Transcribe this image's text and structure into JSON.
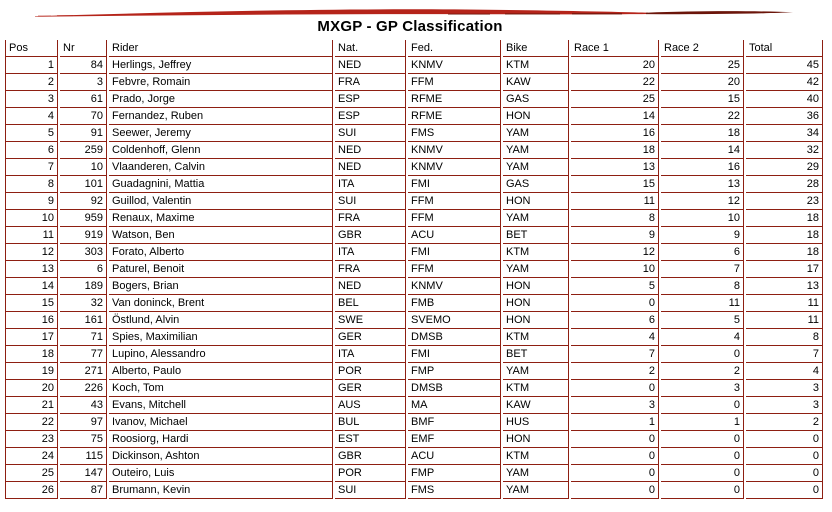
{
  "title": "MXGP - GP Classification",
  "colors": {
    "cell_border": "#8e1f12",
    "brush_bright_red": "#b5241a",
    "brush_dark_red": "#6b150a",
    "text": "#000000"
  },
  "table": {
    "columns": [
      {
        "key": "pos",
        "label": "Pos",
        "align": "right"
      },
      {
        "key": "nr",
        "label": "Nr",
        "align": "right"
      },
      {
        "key": "rider",
        "label": "Rider",
        "align": "left"
      },
      {
        "key": "nat",
        "label": "Nat.",
        "align": "left"
      },
      {
        "key": "fed",
        "label": "Fed.",
        "align": "left"
      },
      {
        "key": "bike",
        "label": "Bike",
        "align": "left"
      },
      {
        "key": "race1",
        "label": "Race 1",
        "align": "right"
      },
      {
        "key": "race2",
        "label": "Race 2",
        "align": "right"
      },
      {
        "key": "total",
        "label": "Total",
        "align": "right"
      }
    ],
    "rows": [
      {
        "pos": 1,
        "nr": 84,
        "rider": "Herlings, Jeffrey",
        "nat": "NED",
        "fed": "KNMV",
        "bike": "KTM",
        "race1": 20,
        "race2": 25,
        "total": 45
      },
      {
        "pos": 2,
        "nr": 3,
        "rider": "Febvre, Romain",
        "nat": "FRA",
        "fed": "FFM",
        "bike": "KAW",
        "race1": 22,
        "race2": 20,
        "total": 42
      },
      {
        "pos": 3,
        "nr": 61,
        "rider": "Prado, Jorge",
        "nat": "ESP",
        "fed": "RFME",
        "bike": "GAS",
        "race1": 25,
        "race2": 15,
        "total": 40
      },
      {
        "pos": 4,
        "nr": 70,
        "rider": "Fernandez, Ruben",
        "nat": "ESP",
        "fed": "RFME",
        "bike": "HON",
        "race1": 14,
        "race2": 22,
        "total": 36
      },
      {
        "pos": 5,
        "nr": 91,
        "rider": "Seewer, Jeremy",
        "nat": "SUI",
        "fed": "FMS",
        "bike": "YAM",
        "race1": 16,
        "race2": 18,
        "total": 34
      },
      {
        "pos": 6,
        "nr": 259,
        "rider": "Coldenhoff, Glenn",
        "nat": "NED",
        "fed": "KNMV",
        "bike": "YAM",
        "race1": 18,
        "race2": 14,
        "total": 32
      },
      {
        "pos": 7,
        "nr": 10,
        "rider": "Vlaanderen, Calvin",
        "nat": "NED",
        "fed": "KNMV",
        "bike": "YAM",
        "race1": 13,
        "race2": 16,
        "total": 29
      },
      {
        "pos": 8,
        "nr": 101,
        "rider": "Guadagnini, Mattia",
        "nat": "ITA",
        "fed": "FMI",
        "bike": "GAS",
        "race1": 15,
        "race2": 13,
        "total": 28
      },
      {
        "pos": 9,
        "nr": 92,
        "rider": "Guillod, Valentin",
        "nat": "SUI",
        "fed": "FFM",
        "bike": "HON",
        "race1": 11,
        "race2": 12,
        "total": 23
      },
      {
        "pos": 10,
        "nr": 959,
        "rider": "Renaux, Maxime",
        "nat": "FRA",
        "fed": "FFM",
        "bike": "YAM",
        "race1": 8,
        "race2": 10,
        "total": 18
      },
      {
        "pos": 11,
        "nr": 919,
        "rider": "Watson, Ben",
        "nat": "GBR",
        "fed": "ACU",
        "bike": "BET",
        "race1": 9,
        "race2": 9,
        "total": 18
      },
      {
        "pos": 12,
        "nr": 303,
        "rider": "Forato, Alberto",
        "nat": "ITA",
        "fed": "FMI",
        "bike": "KTM",
        "race1": 12,
        "race2": 6,
        "total": 18
      },
      {
        "pos": 13,
        "nr": 6,
        "rider": "Paturel, Benoit",
        "nat": "FRA",
        "fed": "FFM",
        "bike": "YAM",
        "race1": 10,
        "race2": 7,
        "total": 17
      },
      {
        "pos": 14,
        "nr": 189,
        "rider": "Bogers, Brian",
        "nat": "NED",
        "fed": "KNMV",
        "bike": "HON",
        "race1": 5,
        "race2": 8,
        "total": 13
      },
      {
        "pos": 15,
        "nr": 32,
        "rider": "Van doninck, Brent",
        "nat": "BEL",
        "fed": "FMB",
        "bike": "HON",
        "race1": 0,
        "race2": 11,
        "total": 11
      },
      {
        "pos": 16,
        "nr": 161,
        "rider": "Östlund, Alvin",
        "nat": "SWE",
        "fed": "SVEMO",
        "bike": "HON",
        "race1": 6,
        "race2": 5,
        "total": 11
      },
      {
        "pos": 17,
        "nr": 71,
        "rider": "Spies, Maximilian",
        "nat": "GER",
        "fed": "DMSB",
        "bike": "KTM",
        "race1": 4,
        "race2": 4,
        "total": 8
      },
      {
        "pos": 18,
        "nr": 77,
        "rider": "Lupino, Alessandro",
        "nat": "ITA",
        "fed": "FMI",
        "bike": "BET",
        "race1": 7,
        "race2": 0,
        "total": 7
      },
      {
        "pos": 19,
        "nr": 271,
        "rider": "Alberto, Paulo",
        "nat": "POR",
        "fed": "FMP",
        "bike": "YAM",
        "race1": 2,
        "race2": 2,
        "total": 4
      },
      {
        "pos": 20,
        "nr": 226,
        "rider": "Koch, Tom",
        "nat": "GER",
        "fed": "DMSB",
        "bike": "KTM",
        "race1": 0,
        "race2": 3,
        "total": 3
      },
      {
        "pos": 21,
        "nr": 43,
        "rider": "Evans, Mitchell",
        "nat": "AUS",
        "fed": "MA",
        "bike": "KAW",
        "race1": 3,
        "race2": 0,
        "total": 3
      },
      {
        "pos": 22,
        "nr": 97,
        "rider": "Ivanov, Michael",
        "nat": "BUL",
        "fed": "BMF",
        "bike": "HUS",
        "race1": 1,
        "race2": 1,
        "total": 2
      },
      {
        "pos": 23,
        "nr": 75,
        "rider": "Roosiorg, Hardi",
        "nat": "EST",
        "fed": "EMF",
        "bike": "HON",
        "race1": 0,
        "race2": 0,
        "total": 0
      },
      {
        "pos": 24,
        "nr": 115,
        "rider": "Dickinson, Ashton",
        "nat": "GBR",
        "fed": "ACU",
        "bike": "KTM",
        "race1": 0,
        "race2": 0,
        "total": 0
      },
      {
        "pos": 25,
        "nr": 147,
        "rider": "Outeiro, Luis",
        "nat": "POR",
        "fed": "FMP",
        "bike": "YAM",
        "race1": 0,
        "race2": 0,
        "total": 0
      },
      {
        "pos": 26,
        "nr": 87,
        "rider": "Brumann, Kevin",
        "nat": "SUI",
        "fed": "FMS",
        "bike": "YAM",
        "race1": 0,
        "race2": 0,
        "total": 0
      }
    ]
  }
}
